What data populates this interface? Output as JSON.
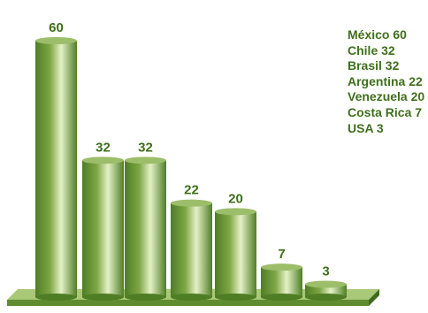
{
  "chart_data": {
    "type": "bar",
    "categories": [
      "México",
      "Chile",
      "Brasil",
      "Argentina",
      "Venezuela",
      "Costa Rica",
      "USA"
    ],
    "values": [
      60,
      32,
      32,
      22,
      20,
      7,
      3
    ],
    "legend": [
      {
        "name": "México",
        "value": "60"
      },
      {
        "name": "Chile",
        "value": "32"
      },
      {
        "name": "Brasil",
        "value": "32"
      },
      {
        "name": "Argentina",
        "value": "22"
      },
      {
        "name": "Venezuela",
        "value": "20"
      },
      {
        "name": "Costa Rica",
        "value": "7"
      },
      {
        "name": "USA",
        "value": "3"
      }
    ],
    "legend_placement": "top-right",
    "ylim": [
      0,
      60
    ],
    "grid": false,
    "colors": {
      "bar_dark": "#4f7d25",
      "bar_mid": "#7ea645",
      "bar_light": "#e4f1c6",
      "top_rim": "#9cbe6a",
      "base_top": "#a9c878",
      "base_front": "#5f8c2f",
      "base_side": "#3f6a1c",
      "label": "#3f6f1c"
    }
  }
}
